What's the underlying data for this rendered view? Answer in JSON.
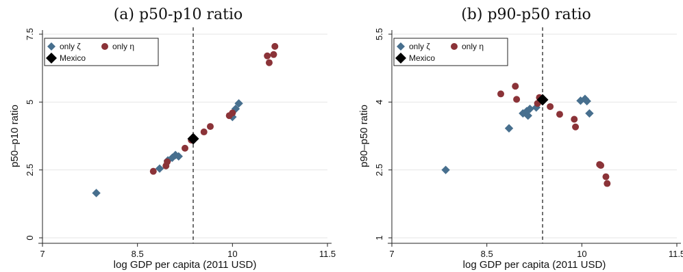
{
  "chart_data": [
    {
      "type": "scatter",
      "title": "(a) p50-p10 ratio",
      "xlabel": "log GDP per capita (2011 USD)",
      "ylabel": "p50–p10 ratio",
      "xlim": [
        7,
        11.5
      ],
      "ylim": [
        0,
        7.5
      ],
      "xticks": [
        7,
        8.5,
        10,
        11.5
      ],
      "xtick_labels": [
        "7",
        "8.5",
        "10",
        "11.5"
      ],
      "yticks": [
        0,
        2.5,
        5,
        7.5
      ],
      "ytick_labels": [
        "0",
        "2.5",
        "5",
        "7.5"
      ],
      "grid": true,
      "vline_x": 9.38,
      "legend_position": "top-left",
      "colors": {
        "zeta": "#476f8e",
        "eta": "#8b3338",
        "mexico": "#000000"
      },
      "legend": [
        "only ζ",
        "only η",
        "Mexico"
      ],
      "series": [
        {
          "name": "only ζ",
          "marker": "diamond",
          "x": [
            7.85,
            8.85,
            8.98,
            9.05,
            9.1,
            9.15,
            10.0,
            10.05,
            10.1
          ],
          "y": [
            1.65,
            2.55,
            2.85,
            2.95,
            3.05,
            3.0,
            4.45,
            4.75,
            4.95
          ]
        },
        {
          "name": "only η",
          "marker": "circle",
          "x": [
            8.75,
            8.95,
            8.97,
            9.25,
            9.35,
            9.55,
            9.65,
            9.95,
            10.0,
            10.55,
            10.58,
            10.65,
            10.67
          ],
          "y": [
            2.45,
            2.65,
            2.8,
            3.3,
            3.6,
            3.9,
            4.1,
            4.5,
            4.6,
            6.7,
            6.45,
            6.75,
            7.05
          ]
        },
        {
          "name": "Mexico",
          "marker": "diamond-large",
          "x": [
            9.38
          ],
          "y": [
            3.65
          ]
        }
      ]
    },
    {
      "type": "scatter",
      "title": "(b) p90-p50 ratio",
      "xlabel": "log GDP per capita (2011 USD)",
      "ylabel": "p90–p50 ratio",
      "xlim": [
        7,
        11.5
      ],
      "ylim": [
        1,
        5.5
      ],
      "xticks": [
        7,
        8.5,
        10,
        11.5
      ],
      "xtick_labels": [
        "7",
        "8.5",
        "10",
        "11.5"
      ],
      "yticks": [
        1,
        2.5,
        4,
        5.5
      ],
      "ytick_labels": [
        "1",
        "2.5",
        "4",
        "5.5"
      ],
      "grid": true,
      "vline_x": 9.38,
      "legend_position": "top-left",
      "colors": {
        "zeta": "#476f8e",
        "eta": "#8b3338",
        "mexico": "#000000"
      },
      "legend": [
        "only ζ",
        "only η",
        "Mexico"
      ],
      "series": [
        {
          "name": "only ζ",
          "marker": "diamond",
          "x": [
            7.85,
            8.85,
            9.07,
            9.13,
            9.15,
            9.18,
            9.28,
            9.98,
            10.05,
            10.08,
            10.12
          ],
          "y": [
            2.5,
            3.42,
            3.75,
            3.8,
            3.7,
            3.85,
            3.88,
            4.03,
            4.07,
            4.02,
            3.75
          ],
          "extra_x": [],
          "extra_y": []
        },
        {
          "name": "only η",
          "marker": "circle",
          "x": [
            8.72,
            8.95,
            8.97,
            9.3,
            9.33,
            9.5,
            9.65,
            9.88,
            9.9,
            10.28,
            10.3,
            10.38,
            10.4
          ],
          "y": [
            4.18,
            4.35,
            4.06,
            3.97,
            4.1,
            3.9,
            3.73,
            3.62,
            3.45,
            2.62,
            2.6,
            2.35,
            2.2
          ]
        },
        {
          "name": "Mexico",
          "marker": "diamond-large",
          "x": [
            9.38
          ],
          "y": [
            4.05
          ]
        }
      ]
    }
  ]
}
